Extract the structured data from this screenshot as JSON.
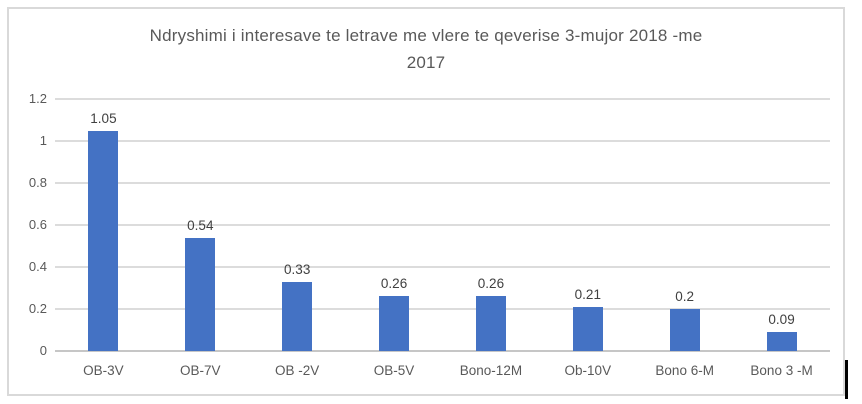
{
  "chart_data": {
    "type": "bar",
    "title": "Ndryshimi i interesave te letrave me vlere te qeverise 3-mujor 2018 -me 2017",
    "title_lines": [
      "Ndryshimi i interesave te letrave me vlere te qeverise 3-mujor 2018 -me",
      "2017"
    ],
    "categories": [
      "OB-3V",
      "OB-7V",
      "OB -2V",
      "OB-5V",
      "Bono-12M",
      "Ob-10V",
      "Bono 6-M",
      "Bono 3 -M"
    ],
    "values": [
      1.05,
      0.54,
      0.33,
      0.26,
      0.26,
      0.21,
      0.2,
      0.09
    ],
    "value_labels": [
      "1.05",
      "0.54",
      "0.33",
      "0.26",
      "0.26",
      "0.21",
      "0.2",
      "0.09"
    ],
    "xlabel": "",
    "ylabel": "",
    "ylim": [
      0,
      1.2
    ],
    "yticks": [
      0,
      0.2,
      0.4,
      0.6,
      0.8,
      1,
      1.2
    ],
    "ytick_labels": [
      "0",
      "0.2",
      "0.4",
      "0.6",
      "0.8",
      "1",
      "1.2"
    ],
    "grid": true,
    "legend_position": "none",
    "series_color": "#4472c4"
  },
  "colors": {
    "bar": "#4472c4",
    "gridline": "#dcdcdc",
    "axis_line": "#c6c6c6",
    "frame_border": "#d9d9d9",
    "title_text": "#595959",
    "axis_text": "#595959",
    "data_label_text": "#404040",
    "cursor": "#000000"
  }
}
